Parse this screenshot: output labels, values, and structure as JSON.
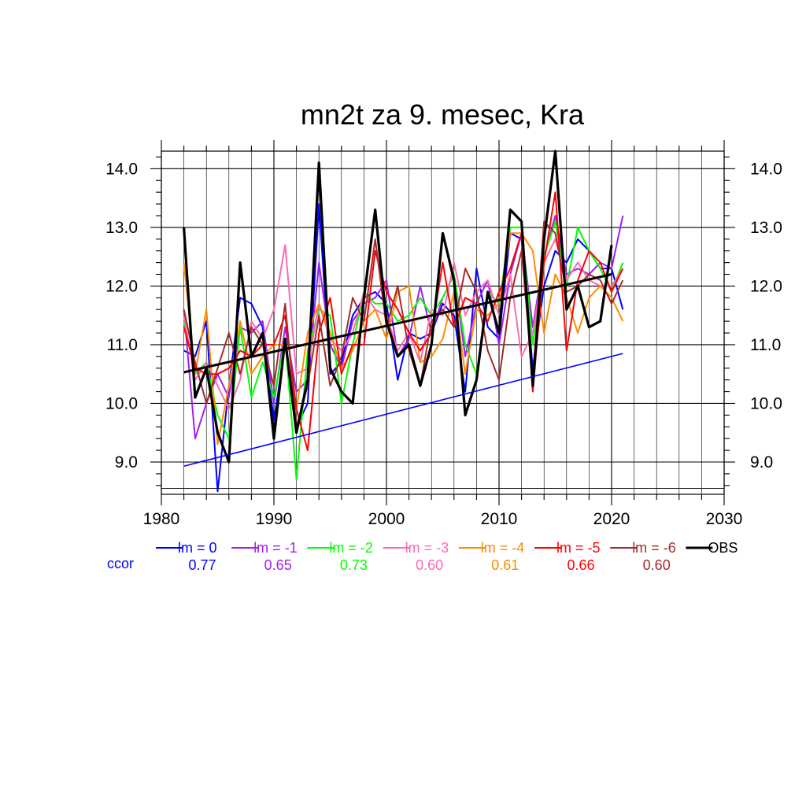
{
  "chart_data": {
    "type": "line",
    "title": "mn2t za 9. mesec, Kra",
    "xlabel": "",
    "ylabel": "",
    "xlim": [
      1980,
      2030
    ],
    "ylim": [
      8.45,
      14.3
    ],
    "x_ticks": [
      1980,
      1990,
      2000,
      2010,
      2020,
      2030
    ],
    "y_ticks": [
      9.0,
      10.0,
      11.0,
      12.0,
      13.0,
      14.0
    ],
    "y_tick_labels": [
      "9.0",
      "10.0",
      "11.0",
      "12.0",
      "13.0",
      "14.0"
    ],
    "grid": true,
    "legend_position": "bottom",
    "x": [
      1982,
      1983,
      1984,
      1985,
      1986,
      1987,
      1988,
      1989,
      1990,
      1991,
      1992,
      1993,
      1994,
      1995,
      1996,
      1997,
      1998,
      1999,
      2000,
      2001,
      2002,
      2003,
      2004,
      2005,
      2006,
      2007,
      2008,
      2009,
      2010,
      2011,
      2012,
      2013,
      2014,
      2015,
      2016,
      2017,
      2018,
      2019,
      2020,
      2021
    ],
    "series": [
      {
        "name": "lm = 0",
        "color": "#0000ff",
        "ccor": "0.77",
        "values": [
          10.9,
          10.8,
          11.4,
          8.5,
          10.3,
          11.8,
          11.7,
          11.3,
          9.7,
          11.0,
          9.6,
          10.0,
          13.4,
          10.5,
          10.7,
          11.5,
          11.8,
          11.9,
          11.7,
          10.4,
          11.2,
          11.1,
          11.2,
          11.7,
          11.5,
          10.2,
          12.3,
          11.3,
          11.1,
          12.9,
          12.8,
          10.6,
          12.0,
          12.6,
          12.4,
          12.8,
          12.6,
          12.3,
          12.3,
          11.6
        ]
      },
      {
        "name": "lm = -1",
        "color": "#a020f0",
        "ccor": "0.65",
        "values": [
          11.6,
          9.4,
          10.0,
          10.5,
          10.1,
          11.3,
          11.2,
          11.4,
          10.0,
          11.3,
          10.2,
          10.4,
          12.4,
          11.0,
          10.6,
          11.4,
          11.7,
          11.8,
          12.1,
          10.8,
          11.1,
          12.0,
          11.2,
          11.8,
          12.2,
          10.8,
          11.7,
          12.1,
          11.0,
          12.2,
          12.9,
          11.3,
          12.5,
          13.2,
          12.2,
          12.3,
          12.2,
          12.4,
          12.3,
          13.2
        ]
      },
      {
        "name": "lm = -2",
        "color": "#00ff00",
        "ccor": "0.73",
        "values": [
          11.4,
          10.5,
          10.7,
          9.8,
          9.4,
          11.3,
          10.1,
          10.7,
          10.1,
          11.1,
          8.7,
          10.9,
          11.6,
          11.5,
          10.0,
          11.0,
          11.9,
          11.7,
          11.7,
          11.4,
          11.5,
          11.8,
          11.5,
          11.8,
          12.2,
          11.0,
          10.5,
          11.9,
          11.7,
          13.0,
          13.0,
          11.0,
          12.5,
          13.1,
          12.0,
          13.0,
          12.6,
          12.3,
          11.9,
          12.4
        ]
      },
      {
        "name": "lm = -3",
        "color": "#ff69b4",
        "ccor": "0.60",
        "values": [
          11.5,
          10.4,
          10.7,
          10.3,
          9.9,
          10.4,
          11.4,
          11.1,
          11.6,
          12.7,
          10.5,
          10.6,
          11.7,
          11.1,
          10.9,
          11.2,
          11.9,
          11.6,
          11.5,
          10.9,
          11.2,
          10.7,
          11.6,
          11.5,
          12.4,
          11.5,
          11.9,
          12.1,
          11.5,
          12.2,
          10.8,
          11.2,
          12.4,
          12.8,
          12.1,
          12.4,
          12.1,
          12.0,
          12.0,
          12.3
        ]
      },
      {
        "name": "lm = -4",
        "color": "#ff8c00",
        "ccor": "0.61",
        "values": [
          12.4,
          10.5,
          11.6,
          9.3,
          10.3,
          11.4,
          10.5,
          10.8,
          11.0,
          11.0,
          9.9,
          11.2,
          11.7,
          11.2,
          10.6,
          10.9,
          11.4,
          11.6,
          11.1,
          11.9,
          12.0,
          10.7,
          10.8,
          11.1,
          11.9,
          10.5,
          11.6,
          11.5,
          11.7,
          12.9,
          12.9,
          12.6,
          11.2,
          12.2,
          11.8,
          11.2,
          11.8,
          12.0,
          11.8,
          11.4
        ]
      },
      {
        "name": "lm = -5",
        "color": "#ff0000",
        "ccor": "0.66",
        "values": [
          11.3,
          10.6,
          10.5,
          10.5,
          10.6,
          10.9,
          10.8,
          11.0,
          11.0,
          11.5,
          9.9,
          9.2,
          11.2,
          11.8,
          10.5,
          11.0,
          11.0,
          12.6,
          11.9,
          11.6,
          11.2,
          10.9,
          11.2,
          12.4,
          11.3,
          11.8,
          11.7,
          11.4,
          11.9,
          12.3,
          12.9,
          10.2,
          12.4,
          13.6,
          10.9,
          12.1,
          12.6,
          12.4,
          11.9,
          12.3
        ]
      },
      {
        "name": "lm = -6",
        "color": "#a52a2a",
        "ccor": "0.60",
        "values": [
          11.6,
          10.7,
          10.0,
          10.6,
          11.2,
          10.5,
          11.3,
          11.0,
          10.3,
          11.7,
          9.6,
          10.3,
          11.5,
          10.3,
          10.8,
          11.8,
          11.4,
          12.8,
          11.3,
          12.0,
          10.9,
          10.3,
          11.4,
          11.6,
          11.3,
          12.3,
          11.9,
          10.9,
          10.4,
          11.8,
          12.6,
          10.4,
          13.1,
          12.9,
          11.9,
          12.0,
          12.2,
          12.1,
          11.7,
          12.1
        ]
      },
      {
        "name": "OBS",
        "color": "#000000",
        "ccor": "",
        "values": [
          13.0,
          10.1,
          10.6,
          9.5,
          9.0,
          12.4,
          10.8,
          11.2,
          9.4,
          11.1,
          9.5,
          10.4,
          14.1,
          10.6,
          10.2,
          10.0,
          11.8,
          13.3,
          11.4,
          10.8,
          11.0,
          10.3,
          11.0,
          12.9,
          12.1,
          9.8,
          10.4,
          11.9,
          11.2,
          13.3,
          13.1,
          10.3,
          12.8,
          14.3,
          11.6,
          12.0,
          11.3,
          11.4,
          12.7,
          null
        ]
      }
    ],
    "trend_lines": [
      {
        "name": "OBS trend",
        "color": "#000000",
        "x": [
          1982,
          2020
        ],
        "y": [
          10.53,
          12.2
        ]
      },
      {
        "name": "lm = 0 trend",
        "color": "#0000ff",
        "x": [
          1982,
          2021
        ],
        "y": [
          8.93,
          10.85
        ]
      }
    ],
    "ccor_label": "ccor",
    "ccor_color": "#0000ff"
  }
}
